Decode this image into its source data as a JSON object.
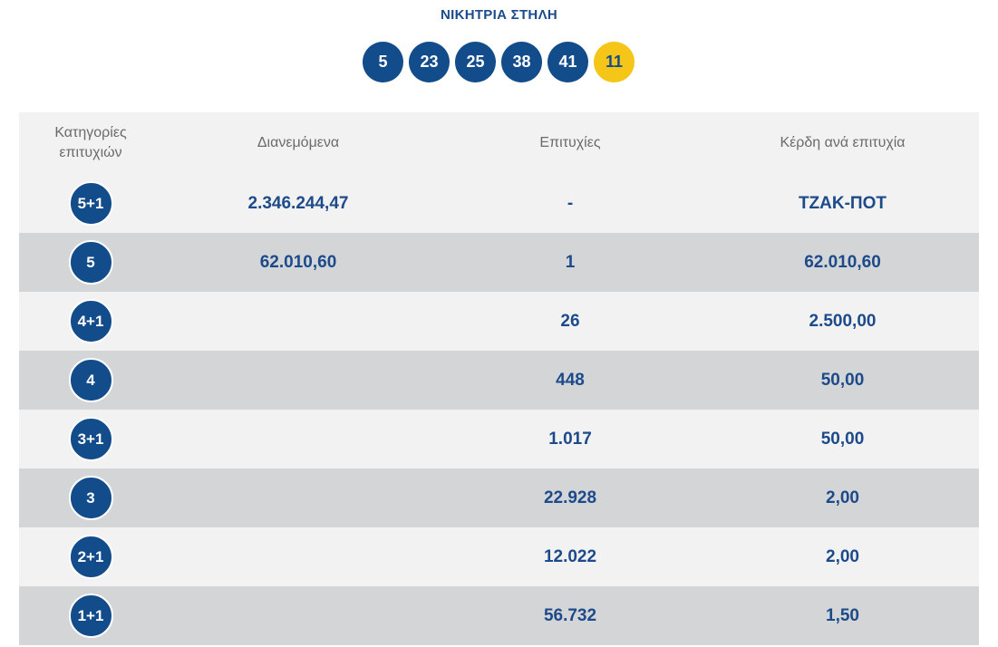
{
  "title": "ΝΙΚΗΤΡΙΑ ΣΤΗΛΗ",
  "numbers": [
    "5",
    "23",
    "25",
    "38",
    "41"
  ],
  "bonus": "11",
  "header": {
    "col1_line1": "Κατηγορίες",
    "col1_line2": "επιτυχιών",
    "col2": "Διανεμόμενα",
    "col3": "Επιτυχίες",
    "col4": "Κέρδη ανά επιτυχία"
  },
  "rows": [
    {
      "category": "5+1",
      "distributed": "2.346.244,47",
      "winners": "-",
      "prize": "ΤΖΑΚ-ΠΟΤ"
    },
    {
      "category": "5",
      "distributed": "62.010,60",
      "winners": "1",
      "prize": "62.010,60"
    },
    {
      "category": "4+1",
      "distributed": "",
      "winners": "26",
      "prize": "2.500,00"
    },
    {
      "category": "4",
      "distributed": "",
      "winners": "448",
      "prize": "50,00"
    },
    {
      "category": "3+1",
      "distributed": "",
      "winners": "1.017",
      "prize": "50,00"
    },
    {
      "category": "3",
      "distributed": "",
      "winners": "22.928",
      "prize": "2,00"
    },
    {
      "category": "2+1",
      "distributed": "",
      "winners": "12.022",
      "prize": "2,00"
    },
    {
      "category": "1+1",
      "distributed": "",
      "winners": "56.732",
      "prize": "1,50"
    }
  ]
}
